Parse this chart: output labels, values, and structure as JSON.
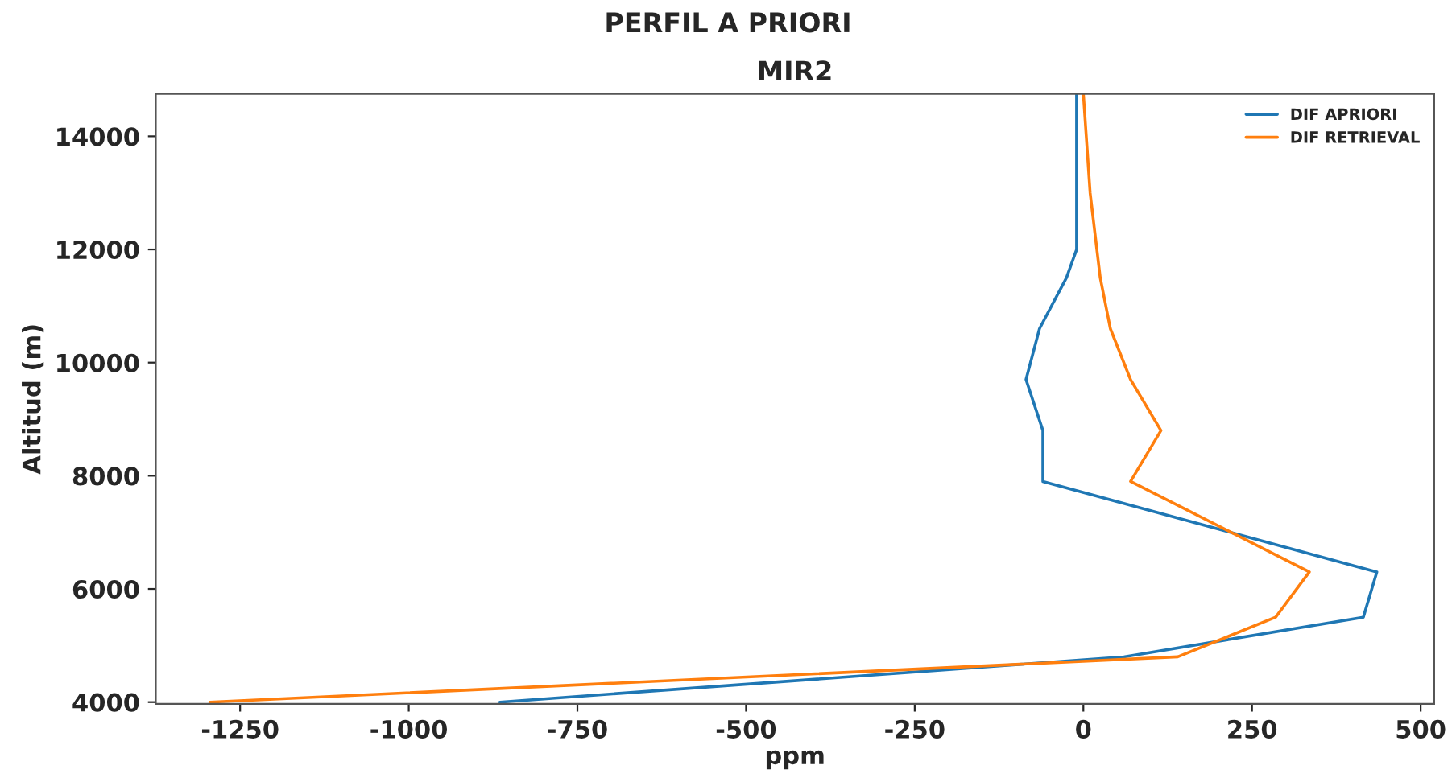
{
  "chart_data": {
    "type": "line",
    "title": "PERFIL A PRIORI",
    "subtitle": "MIR2",
    "xlabel": "ppm",
    "ylabel": "Altitud (m)",
    "series": [
      {
        "name": "DIF APRIORI",
        "color": "#1f77b4",
        "x": [
          -865,
          60,
          415,
          435,
          -60,
          -60,
          -85,
          -65,
          -25,
          -10,
          -10,
          -10
        ],
        "values": [
          4000,
          4800,
          5500,
          6300,
          7900,
          8800,
          9700,
          10600,
          11500,
          12000,
          13000,
          14750
        ]
      },
      {
        "name": "DIF RETRIEVAL",
        "color": "#ff7f0e",
        "x": [
          -1295,
          140,
          285,
          335,
          70,
          115,
          70,
          40,
          25,
          20,
          10,
          0
        ],
        "values": [
          4000,
          4800,
          5500,
          6300,
          7900,
          8800,
          9700,
          10600,
          11500,
          12000,
          13000,
          14750
        ]
      }
    ],
    "xlim": [
      -1375,
      520
    ],
    "ylim": [
      3970,
      14750
    ],
    "xticks": [
      -1250,
      -1000,
      -750,
      -500,
      -250,
      0,
      250,
      500
    ],
    "yticks": [
      4000,
      6000,
      8000,
      10000,
      12000,
      14000
    ],
    "legend": "top right",
    "grid": false
  }
}
